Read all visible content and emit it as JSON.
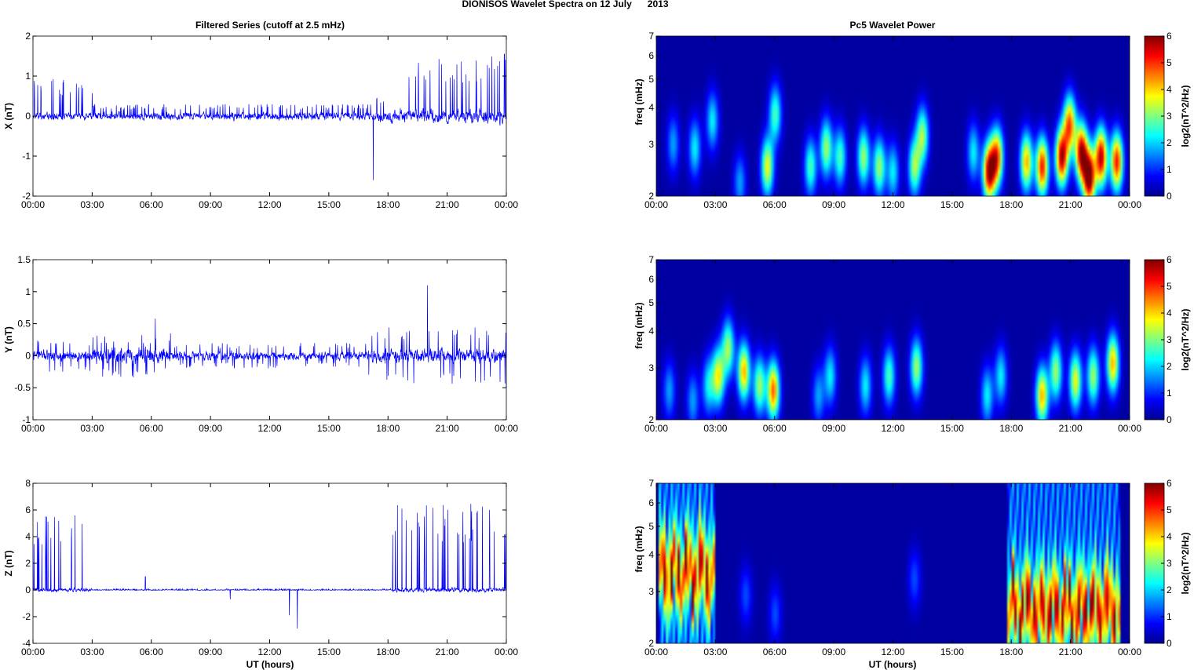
{
  "figure": {
    "suptitle": "DIONISOS Wavelet Spectra on 12 July      2013",
    "left_title": "Filtered Series (cutoff at 2.5 mHz)",
    "right_title": "Pc5 Wavelet Power",
    "xlabel": "UT (hours)"
  },
  "chart_data": [
    {
      "type": "line",
      "component": "X",
      "ylabel": "X (nT)",
      "x_ticks": [
        "00:00",
        "03:00",
        "06:00",
        "09:00",
        "12:00",
        "15:00",
        "18:00",
        "21:00",
        "00:00"
      ],
      "xlim_hours": [
        0,
        24
      ],
      "ylim": [
        -2,
        2
      ],
      "y_ticks": [
        "-2",
        "-1",
        "0",
        "1",
        "2"
      ],
      "y_tick_values": [
        -2,
        -1,
        0,
        1,
        2
      ],
      "line_color": "#0000ff",
      "envelope": [
        {
          "from_h": 0.0,
          "to_h": 3.0,
          "baseline_amp": 0.12,
          "spike_max": 0.95
        },
        {
          "from_h": 3.0,
          "to_h": 17.2,
          "baseline_amp": 0.15,
          "spike_max": 0.3
        },
        {
          "from_h": 17.2,
          "to_h": 18.0,
          "baseline_amp": 0.2,
          "spike_max": 0.6
        },
        {
          "from_h": 18.0,
          "to_h": 24.0,
          "baseline_amp": 0.25,
          "spike_max": 1.5
        }
      ],
      "extremes": [
        {
          "t_h": 17.25,
          "value": -1.6
        },
        {
          "t_h": 23.9,
          "value": 1.55
        }
      ]
    },
    {
      "type": "line",
      "component": "Y",
      "ylabel": "Y (nT)",
      "x_ticks": [
        "00:00",
        "03:00",
        "06:00",
        "09:00",
        "12:00",
        "15:00",
        "18:00",
        "21:00",
        "00:00"
      ],
      "xlim_hours": [
        0,
        24
      ],
      "ylim": [
        -1,
        1.5
      ],
      "y_ticks": [
        "-1",
        "-0.5",
        "0",
        "0.5",
        "1",
        "1.5"
      ],
      "y_tick_values": [
        -1,
        -0.5,
        0,
        0.5,
        1,
        1.5
      ],
      "line_color": "#0000ff",
      "envelope": [
        {
          "from_h": 0.0,
          "to_h": 3.0,
          "baseline_amp": 0.12,
          "spike_max": 0.25
        },
        {
          "from_h": 3.0,
          "to_h": 7.0,
          "baseline_amp": 0.18,
          "spike_max": 0.35
        },
        {
          "from_h": 7.0,
          "to_h": 17.0,
          "baseline_amp": 0.1,
          "spike_max": 0.2
        },
        {
          "from_h": 17.0,
          "to_h": 24.0,
          "baseline_amp": 0.15,
          "spike_max": 0.45
        }
      ],
      "extremes": [
        {
          "t_h": 20.0,
          "value": 1.1
        },
        {
          "t_h": 6.2,
          "value": 0.58
        },
        {
          "t_h": 24.0,
          "value": -0.5
        }
      ]
    },
    {
      "type": "line",
      "component": "Z",
      "ylabel": "Z (nT)",
      "x_ticks": [
        "00:00",
        "03:00",
        "06:00",
        "09:00",
        "12:00",
        "15:00",
        "18:00",
        "21:00",
        "00:00"
      ],
      "xlim_hours": [
        0,
        24
      ],
      "ylim": [
        -4,
        8
      ],
      "y_ticks": [
        "-4",
        "-2",
        "0",
        "2",
        "4",
        "6",
        "8"
      ],
      "y_tick_values": [
        -4,
        -2,
        0,
        2,
        4,
        6,
        8
      ],
      "line_color": "#0000ff",
      "envelope": [
        {
          "from_h": 0.0,
          "to_h": 3.0,
          "baseline_amp": 0.2,
          "spike_max": 5.8
        },
        {
          "from_h": 3.0,
          "to_h": 18.2,
          "baseline_amp": 0.05,
          "spike_max": 0.1
        },
        {
          "from_h": 18.2,
          "to_h": 24.0,
          "baseline_amp": 0.25,
          "spike_max": 6.5
        }
      ],
      "extremes": [
        {
          "t_h": 13.4,
          "value": -2.9
        },
        {
          "t_h": 13.0,
          "value": -1.9
        },
        {
          "t_h": 5.7,
          "value": 1.0
        },
        {
          "t_h": 10.0,
          "value": -0.7
        }
      ]
    },
    {
      "type": "heatmap",
      "component": "X",
      "ylabel": "freq (mHz)",
      "y_scale": "log",
      "ylim": [
        2,
        7
      ],
      "y_ticks": [
        "2",
        "3",
        "4",
        "5",
        "6",
        "7"
      ],
      "y_tick_values": [
        2,
        3,
        4,
        5,
        6,
        7
      ],
      "x_ticks": [
        "00:00",
        "03:00",
        "06:00",
        "09:00",
        "12:00",
        "15:00",
        "18:00",
        "21:00",
        "00:00"
      ],
      "xlim_hours": [
        0,
        24
      ],
      "colorbar_label": "log2(nT^2/Hz)",
      "colorbar_ticks": [
        "0",
        "1",
        "2",
        "3",
        "4",
        "5",
        "6"
      ],
      "clim": [
        0,
        6
      ],
      "colormap": "jet",
      "blobs": [
        {
          "t_h": 0.8,
          "f": 3.0,
          "power": 1.5
        },
        {
          "t_h": 1.9,
          "f": 2.9,
          "power": 2.0
        },
        {
          "t_h": 2.8,
          "f": 3.6,
          "power": 2.0
        },
        {
          "t_h": 4.2,
          "f": 2.2,
          "power": 1.5
        },
        {
          "t_h": 5.6,
          "f": 2.5,
          "power": 3.5
        },
        {
          "t_h": 6.0,
          "f": 3.8,
          "power": 2.5
        },
        {
          "t_h": 7.8,
          "f": 2.5,
          "power": 2.5
        },
        {
          "t_h": 8.6,
          "f": 2.9,
          "power": 3.0
        },
        {
          "t_h": 9.3,
          "f": 2.7,
          "power": 2.5
        },
        {
          "t_h": 10.5,
          "f": 2.7,
          "power": 3.0
        },
        {
          "t_h": 11.3,
          "f": 2.5,
          "power": 3.0
        },
        {
          "t_h": 12.0,
          "f": 2.4,
          "power": 2.0
        },
        {
          "t_h": 13.1,
          "f": 2.5,
          "power": 3.0
        },
        {
          "t_h": 13.5,
          "f": 3.2,
          "power": 3.0
        },
        {
          "t_h": 16.1,
          "f": 2.8,
          "power": 2.0
        },
        {
          "t_h": 16.9,
          "f": 2.4,
          "power": 5.5
        },
        {
          "t_h": 17.3,
          "f": 2.7,
          "power": 4.5
        },
        {
          "t_h": 18.8,
          "f": 2.6,
          "power": 4.0
        },
        {
          "t_h": 19.6,
          "f": 2.5,
          "power": 5.0
        },
        {
          "t_h": 20.6,
          "f": 2.7,
          "power": 5.5
        },
        {
          "t_h": 21.0,
          "f": 3.5,
          "power": 4.5
        },
        {
          "t_h": 21.6,
          "f": 2.8,
          "power": 5.5
        },
        {
          "t_h": 22.0,
          "f": 2.3,
          "power": 6.0
        },
        {
          "t_h": 22.6,
          "f": 2.7,
          "power": 5.5
        },
        {
          "t_h": 23.4,
          "f": 2.6,
          "power": 5.0
        }
      ]
    },
    {
      "type": "heatmap",
      "component": "Y",
      "ylabel": "freq (mHz)",
      "y_scale": "log",
      "ylim": [
        2,
        7
      ],
      "y_ticks": [
        "2",
        "3",
        "4",
        "5",
        "6",
        "7"
      ],
      "y_tick_values": [
        2,
        3,
        4,
        5,
        6,
        7
      ],
      "x_ticks": [
        "00:00",
        "03:00",
        "06:00",
        "09:00",
        "12:00",
        "15:00",
        "18:00",
        "21:00",
        "00:00"
      ],
      "xlim_hours": [
        0,
        24
      ],
      "colorbar_label": "log2(nT^2/Hz)",
      "colorbar_ticks": [
        "0",
        "1",
        "2",
        "3",
        "4",
        "5",
        "6"
      ],
      "clim": [
        0,
        6
      ],
      "colormap": "jet",
      "blobs": [
        {
          "t_h": 0.6,
          "f": 2.5,
          "power": 1.5
        },
        {
          "t_h": 1.8,
          "f": 2.3,
          "power": 1.5
        },
        {
          "t_h": 2.6,
          "f": 2.6,
          "power": 2.0
        },
        {
          "t_h": 3.1,
          "f": 2.8,
          "power": 3.5
        },
        {
          "t_h": 3.6,
          "f": 3.5,
          "power": 3.0
        },
        {
          "t_h": 4.4,
          "f": 2.9,
          "power": 4.0
        },
        {
          "t_h": 5.2,
          "f": 2.6,
          "power": 3.0
        },
        {
          "t_h": 5.9,
          "f": 2.5,
          "power": 4.5
        },
        {
          "t_h": 8.2,
          "f": 2.4,
          "power": 1.5
        },
        {
          "t_h": 8.8,
          "f": 2.8,
          "power": 2.0
        },
        {
          "t_h": 10.6,
          "f": 2.6,
          "power": 2.0
        },
        {
          "t_h": 11.8,
          "f": 2.8,
          "power": 2.5
        },
        {
          "t_h": 13.2,
          "f": 3.0,
          "power": 3.0
        },
        {
          "t_h": 16.8,
          "f": 2.4,
          "power": 2.0
        },
        {
          "t_h": 17.5,
          "f": 2.8,
          "power": 2.0
        },
        {
          "t_h": 19.6,
          "f": 2.4,
          "power": 4.0
        },
        {
          "t_h": 20.3,
          "f": 2.9,
          "power": 3.0
        },
        {
          "t_h": 21.3,
          "f": 2.7,
          "power": 3.5
        },
        {
          "t_h": 22.2,
          "f": 2.8,
          "power": 3.0
        },
        {
          "t_h": 23.2,
          "f": 3.1,
          "power": 4.0
        }
      ]
    },
    {
      "type": "heatmap",
      "component": "Z",
      "ylabel": "freq (mHz)",
      "y_scale": "log",
      "ylim": [
        2,
        7
      ],
      "y_ticks": [
        "2",
        "3",
        "4",
        "5",
        "6",
        "7"
      ],
      "y_tick_values": [
        2,
        3,
        4,
        5,
        6,
        7
      ],
      "x_ticks": [
        "00:00",
        "03:00",
        "06:00",
        "09:00",
        "12:00",
        "15:00",
        "18:00",
        "21:00",
        "00:00"
      ],
      "xlim_hours": [
        0,
        24
      ],
      "colorbar_label": "log2(nT^2/Hz)",
      "colorbar_ticks": [
        "0",
        "1",
        "2",
        "3",
        "4",
        "5",
        "6"
      ],
      "clim": [
        0,
        6
      ],
      "colormap": "jet",
      "bands": [
        {
          "from_h": 0.0,
          "to_h": 2.95,
          "f_center": 3.5,
          "power": 5.0
        },
        {
          "from_h": 17.8,
          "to_h": 23.6,
          "f_center": 2.6,
          "power": 5.0
        }
      ],
      "blobs": [
        {
          "t_h": 4.5,
          "f": 2.9,
          "power": 1.0
        },
        {
          "t_h": 6.0,
          "f": 2.5,
          "power": 1.0
        },
        {
          "t_h": 13.1,
          "f": 3.3,
          "power": 1.0
        }
      ]
    }
  ]
}
